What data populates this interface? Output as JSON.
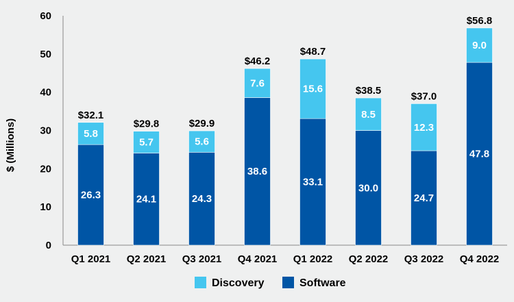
{
  "chart_data": {
    "type": "bar",
    "stacked": true,
    "categories": [
      "Q1 2021",
      "Q2 2021",
      "Q3 2021",
      "Q4 2021",
      "Q1 2022",
      "Q2 2022",
      "Q3 2022",
      "Q4 2022"
    ],
    "series": [
      {
        "name": "Software",
        "color": "#0055a5",
        "values": [
          26.3,
          24.1,
          24.3,
          38.6,
          33.1,
          30.0,
          24.7,
          47.8
        ]
      },
      {
        "name": "Discovery",
        "color": "#45c6ef",
        "values": [
          5.8,
          5.7,
          5.6,
          7.6,
          15.6,
          8.5,
          12.3,
          9.0
        ]
      }
    ],
    "segment_labels": [
      [
        "26.3",
        "24.1",
        "24.3",
        "38.6",
        "33.1",
        "30.0",
        "24.7",
        "47.8"
      ],
      [
        "5.8",
        "5.7",
        "5.6",
        "7.6",
        "15.6",
        "8.5",
        "12.3",
        "9.0"
      ]
    ],
    "total_labels": [
      "$32.1",
      "$29.8",
      "$29.9",
      "$46.2",
      "$48.7",
      "$38.5",
      "$37.0",
      "$56.8"
    ],
    "title": "",
    "xlabel": "",
    "ylabel": "$ (Millions)",
    "ylim": [
      0,
      60
    ],
    "yticks": [
      0,
      10,
      20,
      30,
      40,
      50,
      60
    ],
    "grid": false,
    "legend": {
      "position": "bottom",
      "entries": [
        "Discovery",
        "Software"
      ]
    }
  }
}
